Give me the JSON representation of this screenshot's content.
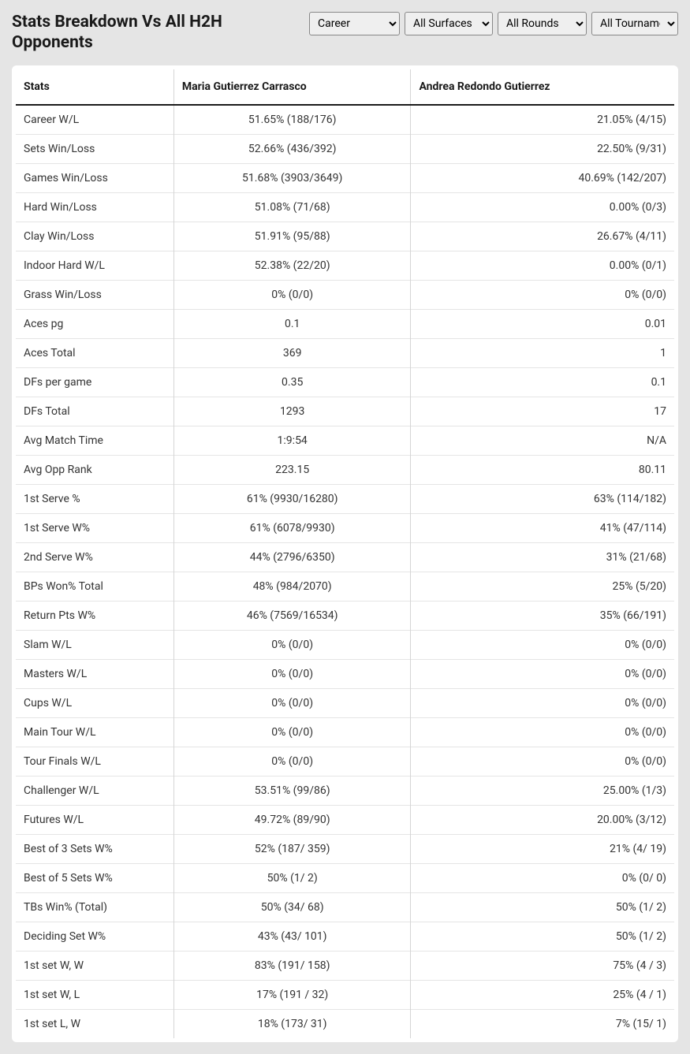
{
  "title": "Stats Breakdown Vs All H2H Opponents",
  "filters": {
    "career": {
      "selected": "Career",
      "options": [
        "Career"
      ]
    },
    "surface": {
      "selected": "All Surfaces",
      "options": [
        "All Surfaces"
      ]
    },
    "rounds": {
      "selected": "All Rounds",
      "options": [
        "All Rounds"
      ]
    },
    "tournaments": {
      "selected": "All Tournaments",
      "options": [
        "All Tournaments"
      ]
    }
  },
  "table": {
    "columns": [
      "Stats",
      "Maria Gutierrez Carrasco",
      "Andrea Redondo Gutierrez"
    ],
    "rows": [
      [
        "Career W/L",
        "51.65% (188/176)",
        "21.05% (4/15)"
      ],
      [
        "Sets Win/Loss",
        "52.66% (436/392)",
        "22.50% (9/31)"
      ],
      [
        "Games Win/Loss",
        "51.68% (3903/3649)",
        "40.69% (142/207)"
      ],
      [
        "Hard Win/Loss",
        "51.08% (71/68)",
        "0.00% (0/3)"
      ],
      [
        "Clay Win/Loss",
        "51.91% (95/88)",
        "26.67% (4/11)"
      ],
      [
        "Indoor Hard W/L",
        "52.38% (22/20)",
        "0.00% (0/1)"
      ],
      [
        "Grass Win/Loss",
        "0% (0/0)",
        "0% (0/0)"
      ],
      [
        "Aces pg",
        "0.1",
        "0.01"
      ],
      [
        "Aces Total",
        "369",
        "1"
      ],
      [
        "DFs per game",
        "0.35",
        "0.1"
      ],
      [
        "DFs Total",
        "1293",
        "17"
      ],
      [
        "Avg Match Time",
        "1:9:54",
        "N/A"
      ],
      [
        "Avg Opp Rank",
        "223.15",
        "80.11"
      ],
      [
        "1st Serve %",
        "61% (9930/16280)",
        "63% (114/182)"
      ],
      [
        "1st Serve W%",
        "61% (6078/9930)",
        "41% (47/114)"
      ],
      [
        "2nd Serve W%",
        "44% (2796/6350)",
        "31% (21/68)"
      ],
      [
        "BPs Won% Total",
        "48% (984/2070)",
        "25% (5/20)"
      ],
      [
        "Return Pts W%",
        "46% (7569/16534)",
        "35% (66/191)"
      ],
      [
        "Slam W/L",
        "0% (0/0)",
        "0% (0/0)"
      ],
      [
        "Masters W/L",
        "0% (0/0)",
        "0% (0/0)"
      ],
      [
        "Cups W/L",
        "0% (0/0)",
        "0% (0/0)"
      ],
      [
        "Main Tour W/L",
        "0% (0/0)",
        "0% (0/0)"
      ],
      [
        "Tour Finals W/L",
        "0% (0/0)",
        "0% (0/0)"
      ],
      [
        "Challenger W/L",
        "53.51% (99/86)",
        "25.00% (1/3)"
      ],
      [
        "Futures W/L",
        "49.72% (89/90)",
        "20.00% (3/12)"
      ],
      [
        "Best of 3 Sets W%",
        "52% (187/ 359)",
        "21% (4/ 19)"
      ],
      [
        "Best of 5 Sets W%",
        "50% (1/ 2)",
        "0% (0/ 0)"
      ],
      [
        "TBs Win% (Total)",
        "50% (34/ 68)",
        "50% (1/ 2)"
      ],
      [
        "Deciding Set W%",
        "43% (43/ 101)",
        "50% (1/ 2)"
      ],
      [
        "1st set W, W",
        "83% (191/ 158)",
        "75% (4 / 3)"
      ],
      [
        "1st set W, L",
        "17% (191 / 32)",
        "25% (4 / 1)"
      ],
      [
        "1st set L, W",
        "18% (173/ 31)",
        "7% (15/ 1)"
      ]
    ]
  },
  "colors": {
    "page_bg": "#e5e5e5",
    "card_bg": "#ffffff",
    "text": "#1a1a1a",
    "border_light": "#e5e5e5",
    "border_header": "#1a1a1a",
    "border_col": "#d5d5d5"
  }
}
